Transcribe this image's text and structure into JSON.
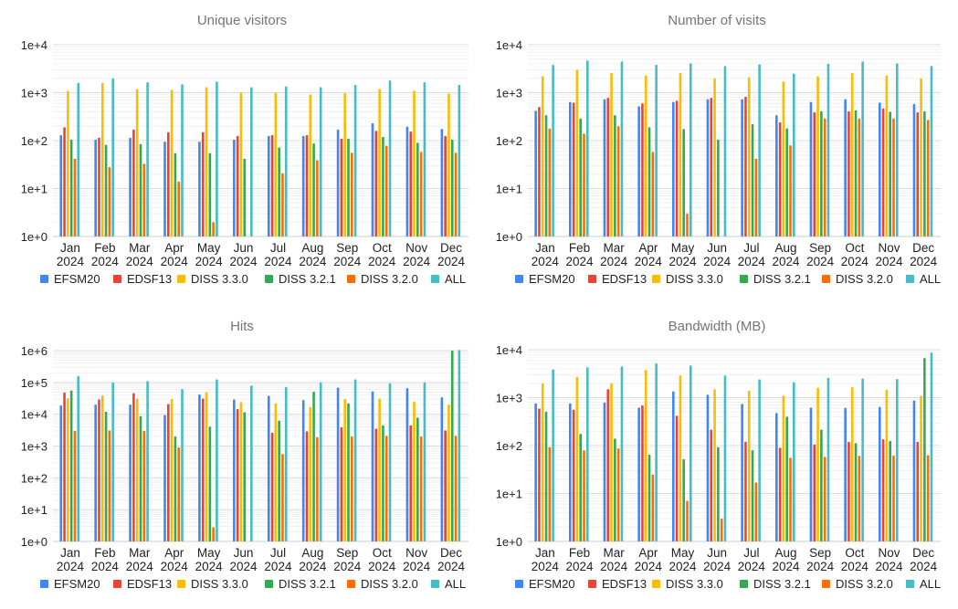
{
  "chart_data": [
    {
      "type": "bar",
      "title": "Unique visitors",
      "yscale": "log",
      "ylim": [
        1,
        10000
      ],
      "yticks": [
        "1e+0",
        "1e+1",
        "1e+2",
        "1e+3",
        "1e+4"
      ],
      "grid": true,
      "legend_position": "bottom",
      "categories": [
        "Jan 2024",
        "Feb 2024",
        "Mar 2024",
        "Apr 2024",
        "May 2024",
        "Jun 2024",
        "Jul 2024",
        "Aug 2024",
        "Sep 2024",
        "Oct 2024",
        "Nov 2024",
        "Dec 2024"
      ],
      "series": [
        {
          "name": "EFSM20",
          "values": [
            130,
            105,
            115,
            95,
            95,
            105,
            125,
            125,
            170,
            230,
            195,
            175
          ]
        },
        {
          "name": "EDSF13",
          "values": [
            190,
            115,
            170,
            150,
            150,
            125,
            130,
            130,
            110,
            160,
            155,
            125
          ]
        },
        {
          "name": "DISS 3.3.0",
          "values": [
            1100,
            1600,
            1200,
            1150,
            1300,
            1000,
            1000,
            920,
            980,
            1200,
            1100,
            960
          ]
        },
        {
          "name": "DISS 3.2.1",
          "values": [
            105,
            82,
            85,
            55,
            55,
            42,
            72,
            87,
            110,
            120,
            90,
            105
          ]
        },
        {
          "name": "DISS 3.2.0",
          "values": [
            42,
            28,
            33,
            14,
            2,
            null,
            21,
            39,
            56,
            78,
            58,
            56
          ]
        },
        {
          "name": "ALL",
          "values": [
            1600,
            2000,
            1650,
            1500,
            1700,
            1300,
            1350,
            1300,
            1450,
            1800,
            1650,
            1450
          ]
        }
      ]
    },
    {
      "type": "bar",
      "title": "Number of visits",
      "yscale": "log",
      "ylim": [
        1,
        10000
      ],
      "yticks": [
        "1e+0",
        "1e+1",
        "1e+2",
        "1e+3",
        "1e+4"
      ],
      "grid": true,
      "legend_position": "bottom",
      "categories": [
        "Jan 2024",
        "Feb 2024",
        "Mar 2024",
        "Apr 2024",
        "May 2024",
        "Jun 2024",
        "Jul 2024",
        "Aug 2024",
        "Sep 2024",
        "Oct 2024",
        "Nov 2024",
        "Dec 2024"
      ],
      "series": [
        {
          "name": "EFSM20",
          "values": [
            420,
            640,
            730,
            520,
            640,
            730,
            730,
            340,
            640,
            730,
            620,
            580
          ]
        },
        {
          "name": "EDSF13",
          "values": [
            500,
            620,
            780,
            600,
            680,
            780,
            820,
            240,
            390,
            410,
            470,
            390
          ]
        },
        {
          "name": "DISS 3.3.0",
          "values": [
            2200,
            3000,
            2600,
            2300,
            2600,
            2000,
            2100,
            1700,
            2200,
            2600,
            2300,
            2000
          ]
        },
        {
          "name": "DISS 3.2.1",
          "values": [
            340,
            290,
            340,
            190,
            175,
            105,
            220,
            180,
            410,
            430,
            400,
            410
          ]
        },
        {
          "name": "DISS 3.2.0",
          "values": [
            180,
            140,
            200,
            58,
            3,
            null,
            42,
            80,
            290,
            290,
            290,
            270
          ]
        },
        {
          "name": "ALL",
          "values": [
            3800,
            4700,
            4500,
            3800,
            4100,
            3600,
            3900,
            2500,
            4000,
            4500,
            4100,
            3600
          ]
        }
      ]
    },
    {
      "type": "bar",
      "title": "Hits",
      "yscale": "log",
      "ylim": [
        1,
        1000000
      ],
      "yticks": [
        "1e+0",
        "1e+1",
        "1e+2",
        "1e+3",
        "1e+4",
        "1e+5",
        "1e+6"
      ],
      "grid": true,
      "legend_position": "bottom",
      "categories": [
        "Jan 2024",
        "Feb 2024",
        "Mar 2024",
        "Apr 2024",
        "May 2024",
        "Jun 2024",
        "Jul 2024",
        "Aug 2024",
        "Sep 2024",
        "Oct 2024",
        "Nov 2024",
        "Dec 2024"
      ],
      "series": [
        {
          "name": "EFSM20",
          "values": [
            19000,
            20000,
            20000,
            9500,
            42000,
            29000,
            38000,
            28000,
            69000,
            52000,
            66000,
            34000
          ]
        },
        {
          "name": "EDSF13",
          "values": [
            48000,
            29000,
            46000,
            21000,
            31000,
            14500,
            2600,
            2900,
            3900,
            3500,
            4500,
            3100
          ]
        },
        {
          "name": "DISS 3.3.0",
          "values": [
            32000,
            39000,
            31000,
            30000,
            50000,
            24000,
            22000,
            17000,
            30000,
            31000,
            25000,
            20000
          ]
        },
        {
          "name": "DISS 3.2.1",
          "values": [
            56000,
            12000,
            8700,
            2000,
            4100,
            11500,
            6300,
            51000,
            22000,
            4500,
            7800,
            1000000
          ]
        },
        {
          "name": "DISS 3.2.0",
          "values": [
            3000,
            3100,
            3000,
            900,
            2.8,
            null,
            560,
            1900,
            2000,
            2100,
            2000,
            2100
          ]
        },
        {
          "name": "ALL",
          "values": [
            160000,
            100000,
            110000,
            62000,
            125000,
            79000,
            72000,
            100000,
            125000,
            95000,
            100000,
            1050000
          ]
        }
      ]
    },
    {
      "type": "bar",
      "title": "Bandwidth (MB)",
      "yscale": "log",
      "ylim": [
        1,
        10000
      ],
      "yticks": [
        "1e+0",
        "1e+1",
        "1e+2",
        "1e+3",
        "1e+4"
      ],
      "grid": true,
      "legend_position": "bottom",
      "categories": [
        "Jan 2024",
        "Feb 2024",
        "Mar 2024",
        "Apr 2024",
        "May 2024",
        "Jun 2024",
        "Jul 2024",
        "Aug 2024",
        "Sep 2024",
        "Oct 2024",
        "Nov 2024",
        "Dec 2024"
      ],
      "series": [
        {
          "name": "EFSM20",
          "values": [
            760,
            760,
            790,
            620,
            1350,
            1150,
            740,
            480,
            620,
            610,
            640,
            870
          ]
        },
        {
          "name": "EDSF13",
          "values": [
            590,
            560,
            1500,
            690,
            420,
            215,
            120,
            90,
            105,
            120,
            135,
            120
          ]
        },
        {
          "name": "DISS 3.3.0",
          "values": [
            2000,
            2700,
            2000,
            3800,
            2900,
            1500,
            1400,
            1100,
            1600,
            1650,
            1450,
            1100
          ]
        },
        {
          "name": "DISS 3.2.1",
          "values": [
            510,
            175,
            140,
            65,
            52,
            93,
            80,
            400,
            215,
            112,
            125,
            6700
          ]
        },
        {
          "name": "DISS 3.2.0",
          "values": [
            93,
            80,
            87,
            25,
            7,
            3,
            17,
            56,
            58,
            61,
            62,
            63
          ]
        },
        {
          "name": "ALL",
          "values": [
            3900,
            4300,
            4500,
            5200,
            4700,
            2900,
            2400,
            2100,
            2600,
            2500,
            2450,
            8700
          ]
        }
      ]
    }
  ],
  "colors": [
    "#4285F4",
    "#EA4335",
    "#FBBC04",
    "#34A853",
    "#FF6D01",
    "#46BDC6"
  ]
}
